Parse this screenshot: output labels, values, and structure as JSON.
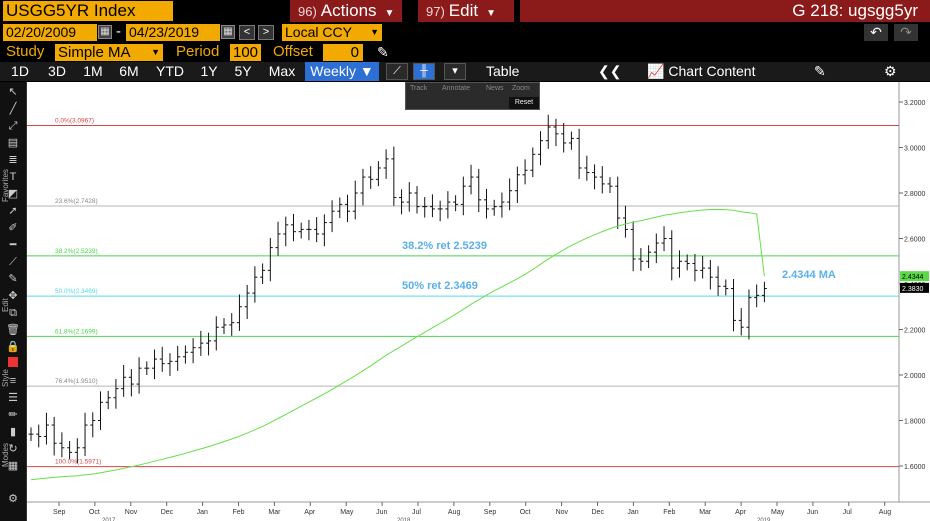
{
  "header": {
    "ticker": "USGG5YR Index",
    "actions": {
      "num": "96)",
      "label": "Actions"
    },
    "edit": {
      "num": "97)",
      "label": "Edit"
    },
    "right_title": "G 218: ugsgg5yr"
  },
  "dates": {
    "start": "02/20/2009",
    "end": "04/23/2019",
    "currency": "Local CCY"
  },
  "study": {
    "label": "Study",
    "value": "Simple MA",
    "period_label": "Period",
    "period": "100",
    "offset_label": "Offset",
    "offset": "0"
  },
  "toolbar": {
    "timeframes": [
      "1D",
      "3D",
      "1M",
      "6M",
      "YTD",
      "1Y",
      "5Y",
      "Max"
    ],
    "frequency": "Weekly",
    "table_label": "Table",
    "chart_content_label": "Chart Content"
  },
  "zoom_panel": {
    "track": "Track",
    "annotate": "Annotate",
    "news": "News",
    "zoom": "Zoom",
    "reset": "Reset"
  },
  "left_labels": {
    "favorites": "Favorites",
    "edit": "Edit",
    "style": "Style",
    "modes": "Modes"
  },
  "chart_data": {
    "type": "ohlc",
    "ylim": [
      1.5,
      3.25
    ],
    "y_ticks": [
      "3.2000",
      "3.0000",
      "2.8000",
      "2.6000",
      "2.4000",
      "2.2000",
      "2.0000",
      "1.8000",
      "1.6000"
    ],
    "months": [
      "Sep",
      "Oct",
      "Nov",
      "Dec",
      "Jan",
      "Feb",
      "Mar",
      "Apr",
      "May",
      "Jun",
      "Jul",
      "Aug",
      "Sep",
      "Oct",
      "Nov",
      "Dec",
      "Jan",
      "Feb",
      "Mar",
      "Apr",
      "May",
      "Jun",
      "Jul",
      "Aug"
    ],
    "years": [
      "2017",
      "2018",
      "2019"
    ],
    "last_value": "2.3830",
    "ma_value": "2.4344",
    "ma_label": "2.4344 MA",
    "fib_levels": [
      {
        "label": "0.0%(3.0967)",
        "value": 3.0967,
        "color": "#d94545"
      },
      {
        "label": "23.6%(2.7428)",
        "value": 2.7428,
        "color": "#b5b5b5"
      },
      {
        "label": "38.2%(2.5239)",
        "value": 2.5239,
        "color": "#4bd44b"
      },
      {
        "label": "50.0%(2.3469)",
        "value": 2.3469,
        "color": "#58d6e8"
      },
      {
        "label": "61.8%(2.1699)",
        "value": 2.1699,
        "color": "#4bd44b"
      },
      {
        "label": "76.4%(1.9510)",
        "value": 1.951,
        "color": "#b5b5b5"
      },
      {
        "label": "100.0%(1.5971)",
        "value": 1.5971,
        "color": "#d94545"
      }
    ],
    "annotations": [
      {
        "text": "38.2% ret 2.5239",
        "value": 2.5239
      },
      {
        "text": "50% ret 2.3469",
        "value": 2.3469
      }
    ],
    "closes": [
      1.74,
      1.73,
      1.78,
      1.7,
      1.68,
      1.66,
      1.68,
      1.78,
      1.8,
      1.88,
      1.9,
      1.94,
      1.99,
      1.96,
      2.03,
      2.03,
      2.07,
      2.05,
      2.06,
      2.08,
      2.1,
      2.12,
      2.14,
      2.15,
      2.21,
      2.22,
      2.23,
      2.3,
      2.36,
      2.43,
      2.46,
      2.56,
      2.62,
      2.66,
      2.63,
      2.64,
      2.64,
      2.62,
      2.67,
      2.72,
      2.75,
      2.72,
      2.8,
      2.87,
      2.86,
      2.91,
      2.95,
      2.78,
      2.76,
      2.8,
      2.74,
      2.74,
      2.73,
      2.73,
      2.76,
      2.75,
      2.83,
      2.87,
      2.77,
      2.73,
      2.74,
      2.76,
      2.81,
      2.88,
      2.9,
      2.97,
      3.03,
      3.09,
      3.06,
      3.02,
      3.04,
      2.91,
      2.89,
      2.87,
      2.84,
      2.83,
      2.69,
      2.64,
      2.51,
      2.5,
      2.54,
      2.58,
      2.6,
      2.47,
      2.5,
      2.49,
      2.46,
      2.47,
      2.43,
      2.39,
      2.38,
      2.24,
      2.21,
      2.34,
      2.35,
      2.38
    ]
  }
}
